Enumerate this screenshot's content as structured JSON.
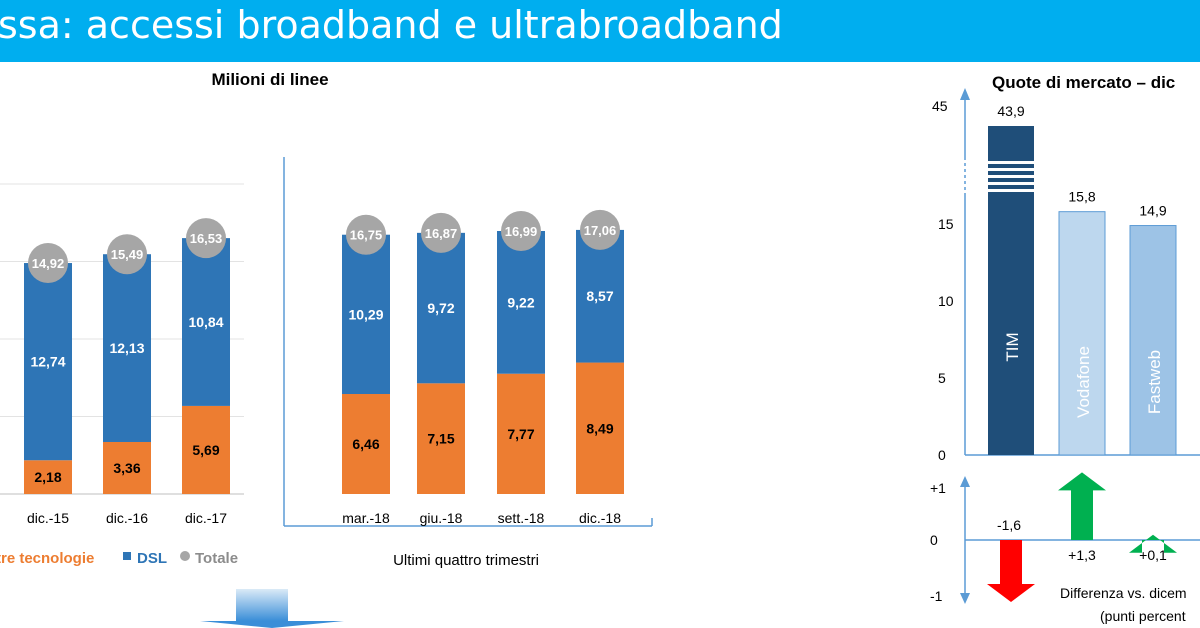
{
  "header": {
    "title": "ssa: accessi broadband e ultrabroadband"
  },
  "left_chart_title": "Milioni di linee",
  "right_chart_title": "Quote di mercato – dic",
  "colors": {
    "header_bg": "#00aeef",
    "other_tech": "#ed7d31",
    "dsl": "#2e75b6",
    "total": "#a6a6a6",
    "tim": "#1f4e79",
    "vodafone": "#bdd7ee",
    "fastweb": "#9dc3e6",
    "up_arrow": "#00b050",
    "down_arrow": "#ff0000"
  },
  "chart_data": [
    {
      "type": "bar",
      "stacked": true,
      "title": "Milioni di linee",
      "categories": [
        "dic.-15",
        "dic.-16",
        "dic.-17",
        "mar.-18",
        "giu.-18",
        "sett.-18",
        "dic.-18"
      ],
      "series": [
        {
          "name": "tre tecnologie",
          "values": [
            2.18,
            3.36,
            5.69,
            6.46,
            7.15,
            7.77,
            8.49
          ]
        },
        {
          "name": "DSL",
          "values": [
            12.74,
            12.13,
            10.84,
            10.29,
            9.72,
            9.22,
            8.57
          ]
        }
      ],
      "totals": [
        14.92,
        15.49,
        16.53,
        16.75,
        16.87,
        16.99,
        17.06
      ],
      "labels": {
        "other": [
          "2,18",
          "3,36",
          "5,69",
          "6,46",
          "7,15",
          "7,77",
          "8,49"
        ],
        "dsl": [
          "12,74",
          "12,13",
          "10,84",
          "10,29",
          "9,72",
          "9,22",
          "8,57"
        ],
        "total": [
          "14,92",
          "15,49",
          "16,53",
          "16,75",
          "16,87",
          "16,99",
          "17,06"
        ]
      },
      "legend": [
        "tre tecnologie",
        "DSL",
        "Totale"
      ],
      "legend_placement": "bottom",
      "group_caption": "Ultimi quattro trimestri",
      "ylim": [
        0,
        18
      ]
    },
    {
      "type": "bar",
      "title": "Quote di mercato – dic",
      "categories": [
        "TIM",
        "Vodafone",
        "Fastweb"
      ],
      "values": [
        43.9,
        15.8,
        14.9
      ],
      "value_labels": [
        "43,9",
        "15,8",
        "14,9"
      ],
      "y_ticks": [
        "0",
        "5",
        "10",
        "15",
        "45"
      ],
      "axis_break": true,
      "delta": {
        "values": [
          -1.6,
          1.3,
          0.1
        ],
        "labels": [
          "-1,6",
          "+1,3",
          "+0,1"
        ],
        "y_ticks": [
          "+1",
          "0",
          "-1"
        ],
        "caption_line1": "Differenza vs. dicem",
        "caption_line2": "(punti percent"
      }
    }
  ]
}
